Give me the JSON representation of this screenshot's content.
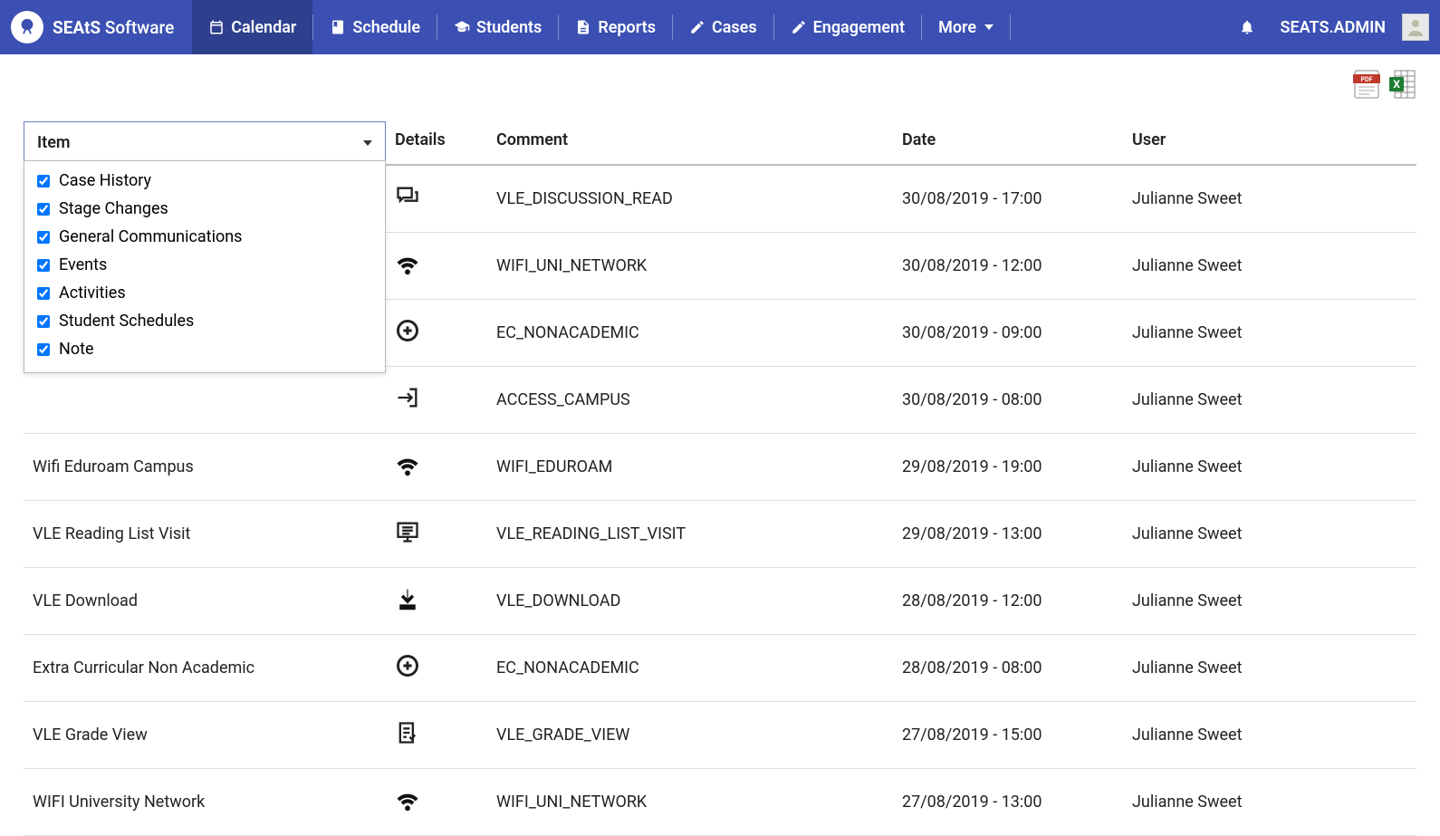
{
  "brand": {
    "name_a": "SEAtS",
    "name_b": "Software"
  },
  "nav": [
    {
      "label": "Calendar",
      "icon": "calendar",
      "active": true
    },
    {
      "label": "Schedule",
      "icon": "book"
    },
    {
      "label": "Students",
      "icon": "grad-cap"
    },
    {
      "label": "Reports",
      "icon": "file"
    },
    {
      "label": "Cases",
      "icon": "edit"
    },
    {
      "label": "Engagement",
      "icon": "edit"
    },
    {
      "label": "More",
      "icon": "",
      "caret": true
    }
  ],
  "user": {
    "name": "SEATS.ADMIN"
  },
  "columns": {
    "item": "Item",
    "details": "Details",
    "comment": "Comment",
    "date": "Date",
    "user": "User"
  },
  "filter_options": [
    {
      "label": "Case History",
      "checked": true
    },
    {
      "label": "Stage Changes",
      "checked": true
    },
    {
      "label": "General Communications",
      "checked": true
    },
    {
      "label": "Events",
      "checked": true
    },
    {
      "label": "Activities",
      "checked": true
    },
    {
      "label": "Student Schedules",
      "checked": true
    },
    {
      "label": "Note",
      "checked": true
    }
  ],
  "rows": [
    {
      "item": "",
      "icon": "discussion",
      "comment": "VLE_DISCUSSION_READ",
      "date": "30/08/2019 - 17:00",
      "user": "Julianne Sweet"
    },
    {
      "item": "",
      "icon": "wifi",
      "comment": "WIFI_UNI_NETWORK",
      "date": "30/08/2019 - 12:00",
      "user": "Julianne Sweet"
    },
    {
      "item": "",
      "icon": "plus-circle",
      "comment": "EC_NONACADEMIC",
      "date": "30/08/2019 - 09:00",
      "user": "Julianne Sweet"
    },
    {
      "item": "",
      "icon": "enter",
      "comment": "ACCESS_CAMPUS",
      "date": "30/08/2019 - 08:00",
      "user": "Julianne Sweet"
    },
    {
      "item": "Wifi Eduroam Campus",
      "icon": "wifi",
      "comment": "WIFI_EDUROAM",
      "date": "29/08/2019 - 19:00",
      "user": "Julianne Sweet"
    },
    {
      "item": "VLE Reading List Visit",
      "icon": "monitor-list",
      "comment": "VLE_READING_LIST_VISIT",
      "date": "29/08/2019 - 13:00",
      "user": "Julianne Sweet"
    },
    {
      "item": "VLE Download",
      "icon": "download",
      "comment": "VLE_DOWNLOAD",
      "date": "28/08/2019 - 12:00",
      "user": "Julianne Sweet"
    },
    {
      "item": "Extra Curricular Non Academic",
      "icon": "plus-circle",
      "comment": "EC_NONACADEMIC",
      "date": "28/08/2019 - 08:00",
      "user": "Julianne Sweet"
    },
    {
      "item": "VLE Grade View",
      "icon": "checklist",
      "comment": "VLE_GRADE_VIEW",
      "date": "27/08/2019 - 15:00",
      "user": "Julianne Sweet"
    },
    {
      "item": "WIFI University Network",
      "icon": "wifi",
      "comment": "WIFI_UNI_NETWORK",
      "date": "27/08/2019 - 13:00",
      "user": "Julianne Sweet"
    }
  ],
  "colors": {
    "navbar": "#3b50b2",
    "navbar_active": "#2e3f8e",
    "border": "#dddddd",
    "text": "#222222"
  }
}
